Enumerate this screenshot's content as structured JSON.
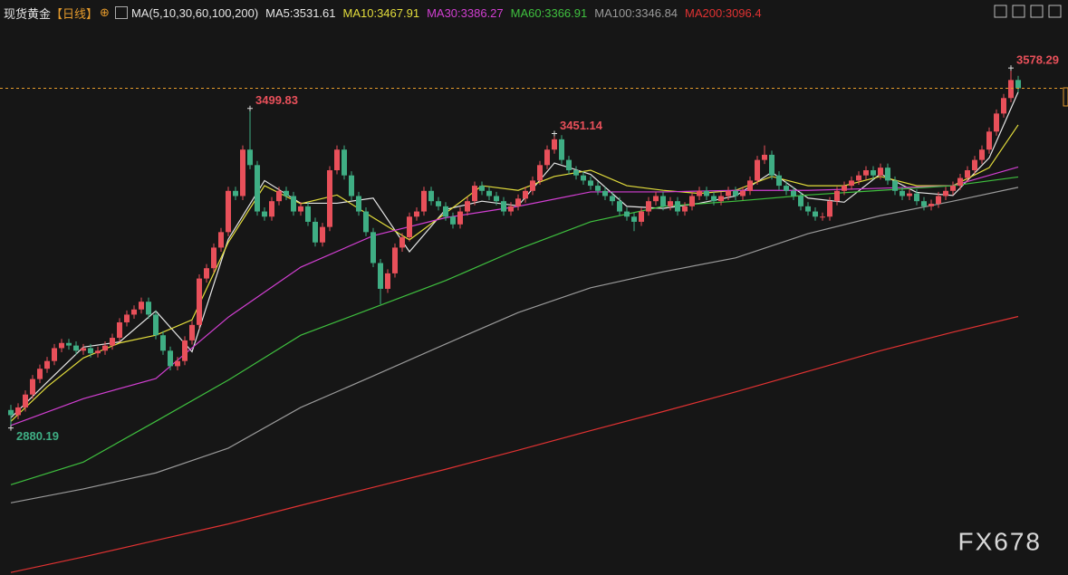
{
  "header": {
    "symbol": "现货黄金",
    "period": "【日线】",
    "ma_params": "MA(5,10,30,60,100,200)"
  },
  "chart_data": {
    "type": "candlestick",
    "up_color": "#e8505a",
    "down_color": "#3fae84",
    "ylim": [
      2595,
      3661
    ],
    "open": [
      2915,
      2905,
      2920,
      2945,
      2975,
      2995,
      3010,
      3035,
      3045,
      3040,
      3030,
      3035,
      3025,
      3030,
      3040,
      3055,
      3085,
      3100,
      3110,
      3125,
      3100,
      3060,
      3030,
      3000,
      3010,
      3050,
      3080,
      3170,
      3190,
      3230,
      3260,
      3340,
      3330,
      3420,
      3390,
      3300,
      3290,
      3320,
      3340,
      3330,
      3300,
      3310,
      3280,
      3240,
      3270,
      3380,
      3420,
      3370,
      3330,
      3300,
      3260,
      3200,
      3150,
      3180,
      3230,
      3250,
      3290,
      3300,
      3340,
      3320,
      3310,
      3290,
      3275,
      3300,
      3320,
      3350,
      3340,
      3330,
      3320,
      3300,
      3310,
      3325,
      3340,
      3360,
      3390,
      3420,
      3440,
      3400,
      3380,
      3370,
      3360,
      3350,
      3340,
      3330,
      3320,
      3300,
      3290,
      3280,
      3300,
      3320,
      3330,
      3310,
      3320,
      3300,
      3310,
      3330,
      3340,
      3330,
      3320,
      3330,
      3340,
      3330,
      3340,
      3360,
      3400,
      3410,
      3370,
      3350,
      3340,
      3330,
      3310,
      3300,
      3290,
      3290,
      3320,
      3340,
      3350,
      3360,
      3370,
      3380,
      3370,
      3385,
      3360,
      3340,
      3330,
      3335,
      3320,
      3310,
      3315,
      3330,
      3340,
      3350,
      3365,
      3380,
      3400,
      3420,
      3455,
      3490,
      3520,
      3555
    ],
    "high": [
      2925,
      2928,
      2953,
      2983,
      3003,
      3018,
      3043,
      3053,
      3053,
      3048,
      3043,
      3043,
      3038,
      3048,
      3063,
      3093,
      3108,
      3118,
      3133,
      3133,
      3108,
      3068,
      3038,
      3018,
      3058,
      3088,
      3178,
      3198,
      3238,
      3268,
      3348,
      3348,
      3428,
      3499.83,
      3398,
      3308,
      3328,
      3348,
      3348,
      3338,
      3318,
      3318,
      3288,
      3278,
      3388,
      3428,
      3428,
      3378,
      3338,
      3308,
      3268,
      3208,
      3188,
      3238,
      3258,
      3298,
      3308,
      3348,
      3348,
      3328,
      3318,
      3298,
      3308,
      3328,
      3358,
      3358,
      3348,
      3338,
      3328,
      3318,
      3333,
      3348,
      3368,
      3398,
      3428,
      3451.14,
      3448,
      3408,
      3388,
      3378,
      3368,
      3358,
      3348,
      3338,
      3328,
      3308,
      3298,
      3308,
      3328,
      3338,
      3338,
      3328,
      3328,
      3318,
      3338,
      3348,
      3348,
      3338,
      3338,
      3348,
      3348,
      3348,
      3368,
      3408,
      3428,
      3418,
      3378,
      3358,
      3348,
      3338,
      3318,
      3308,
      3298,
      3328,
      3348,
      3358,
      3368,
      3378,
      3388,
      3388,
      3393,
      3393,
      3368,
      3348,
      3343,
      3343,
      3328,
      3323,
      3338,
      3348,
      3358,
      3373,
      3388,
      3408,
      3428,
      3463,
      3498,
      3528,
      3578.29,
      3563
    ],
    "low": [
      2880.19,
      2897,
      2912,
      2937,
      2967,
      2987,
      3002,
      3027,
      3032,
      3022,
      3022,
      3017,
      3017,
      3022,
      3032,
      3047,
      3077,
      3092,
      3102,
      3092,
      3052,
      3022,
      2992,
      2992,
      3002,
      3042,
      3072,
      3162,
      3182,
      3222,
      3252,
      3322,
      3322,
      3382,
      3292,
      3282,
      3282,
      3312,
      3322,
      3292,
      3292,
      3272,
      3232,
      3232,
      3262,
      3372,
      3362,
      3322,
      3292,
      3252,
      3192,
      3120,
      3142,
      3172,
      3222,
      3242,
      3282,
      3292,
      3312,
      3302,
      3282,
      3267,
      3267,
      3292,
      3312,
      3332,
      3322,
      3312,
      3292,
      3292,
      3302,
      3317,
      3332,
      3352,
      3382,
      3412,
      3392,
      3372,
      3362,
      3352,
      3342,
      3332,
      3322,
      3312,
      3292,
      3282,
      3262,
      3272,
      3292,
      3312,
      3302,
      3302,
      3292,
      3292,
      3302,
      3322,
      3322,
      3312,
      3312,
      3322,
      3322,
      3322,
      3332,
      3352,
      3392,
      3362,
      3342,
      3332,
      3322,
      3302,
      3292,
      3282,
      3282,
      3282,
      3312,
      3332,
      3342,
      3352,
      3362,
      3362,
      3362,
      3352,
      3332,
      3322,
      3322,
      3312,
      3302,
      3302,
      3307,
      3322,
      3332,
      3342,
      3357,
      3372,
      3392,
      3412,
      3447,
      3482,
      3512,
      3531
    ],
    "close": [
      2905,
      2920,
      2945,
      2975,
      2995,
      3010,
      3035,
      3045,
      3040,
      3030,
      3035,
      3025,
      3030,
      3040,
      3055,
      3085,
      3100,
      3110,
      3125,
      3100,
      3060,
      3030,
      3000,
      3010,
      3050,
      3080,
      3170,
      3190,
      3230,
      3260,
      3340,
      3330,
      3420,
      3390,
      3300,
      3290,
      3320,
      3340,
      3330,
      3300,
      3310,
      3280,
      3240,
      3270,
      3380,
      3420,
      3370,
      3330,
      3300,
      3260,
      3200,
      3150,
      3180,
      3230,
      3250,
      3290,
      3300,
      3340,
      3320,
      3310,
      3290,
      3275,
      3300,
      3320,
      3350,
      3340,
      3330,
      3320,
      3300,
      3310,
      3325,
      3340,
      3360,
      3390,
      3420,
      3440,
      3400,
      3380,
      3370,
      3360,
      3350,
      3340,
      3330,
      3320,
      3300,
      3290,
      3280,
      3300,
      3320,
      3330,
      3310,
      3320,
      3300,
      3310,
      3330,
      3340,
      3330,
      3320,
      3330,
      3340,
      3330,
      3340,
      3360,
      3400,
      3410,
      3370,
      3350,
      3340,
      3330,
      3310,
      3300,
      3290,
      3290,
      3320,
      3340,
      3350,
      3360,
      3370,
      3380,
      3370,
      3385,
      3360,
      3340,
      3330,
      3335,
      3320,
      3310,
      3315,
      3330,
      3340,
      3350,
      3365,
      3380,
      3400,
      3420,
      3455,
      3490,
      3520,
      3555,
      3539
    ],
    "series": [
      {
        "name": "MA5",
        "label": "MA5:3531.61",
        "color": "#e6e6e6",
        "x": [
          0,
          5,
          10,
          15,
          20,
          25,
          30,
          35,
          40,
          45,
          50,
          55,
          60,
          65,
          70,
          75,
          80,
          85,
          90,
          95,
          100,
          105,
          110,
          115,
          120,
          125,
          130,
          135,
          139
        ],
        "values": [
          2900,
          2969,
          3037,
          3047,
          3107,
          3028,
          3246,
          3360,
          3316,
          3316,
          3326,
          3222,
          3304,
          3320,
          3311,
          3394,
          3372,
          3310,
          3306,
          3316,
          3330,
          3376,
          3326,
          3318,
          3373,
          3337,
          3331,
          3404,
          3531.61
        ]
      },
      {
        "name": "MA10",
        "label": "MA10:3467.91",
        "color": "#e3dd3c",
        "x": [
          0,
          5,
          10,
          15,
          20,
          25,
          30,
          35,
          40,
          45,
          50,
          55,
          60,
          65,
          70,
          75,
          80,
          85,
          90,
          95,
          100,
          105,
          110,
          115,
          120,
          125,
          130,
          135,
          139
        ],
        "values": [
          2893,
          2960,
          3016,
          3045,
          3060,
          3090,
          3240,
          3350,
          3315,
          3332,
          3288,
          3245,
          3297,
          3350,
          3341,
          3368,
          3380,
          3350,
          3341,
          3335,
          3341,
          3368,
          3350,
          3350,
          3368,
          3350,
          3350,
          3385,
          3467.91
        ]
      },
      {
        "name": "MA30",
        "label": "MA30:3386.27",
        "color": "#d23fd2",
        "x": [
          0,
          10,
          20,
          30,
          40,
          50,
          60,
          70,
          80,
          90,
          100,
          110,
          120,
          130,
          139
        ],
        "values": [
          2885,
          2937,
          2976,
          3095,
          3192,
          3253,
          3288,
          3310,
          3338,
          3338,
          3341,
          3341,
          3345,
          3350,
          3386.27
        ]
      },
      {
        "name": "MA60",
        "label": "MA60:3366.91",
        "color": "#3fc03f",
        "x": [
          0,
          10,
          20,
          30,
          40,
          50,
          60,
          70,
          80,
          90,
          100,
          110,
          120,
          130,
          139
        ],
        "values": [
          2770,
          2814,
          2893,
          2973,
          3060,
          3113,
          3166,
          3227,
          3280,
          3310,
          3320,
          3332,
          3341,
          3350,
          3366.91
        ]
      },
      {
        "name": "MA100",
        "label": "MA100:3346.84",
        "color": "#9a9a9a",
        "x": [
          0,
          10,
          20,
          30,
          40,
          50,
          60,
          70,
          80,
          90,
          100,
          110,
          120,
          130,
          139
        ],
        "values": [
          2735,
          2762,
          2793,
          2841,
          2920,
          2981,
          3043,
          3104,
          3152,
          3183,
          3210,
          3257,
          3292,
          3320,
          3346.84
        ]
      },
      {
        "name": "MA200",
        "label": "MA200:3096.4",
        "color": "#e03232",
        "x": [
          0,
          10,
          20,
          30,
          40,
          50,
          60,
          70,
          80,
          90,
          100,
          110,
          120,
          130,
          139
        ],
        "values": [
          2600,
          2630,
          2662,
          2694,
          2730,
          2765,
          2800,
          2837,
          2875,
          2912,
          2950,
          2990,
          3030,
          3066,
          3096.4
        ]
      }
    ]
  },
  "watermark": "FX678"
}
